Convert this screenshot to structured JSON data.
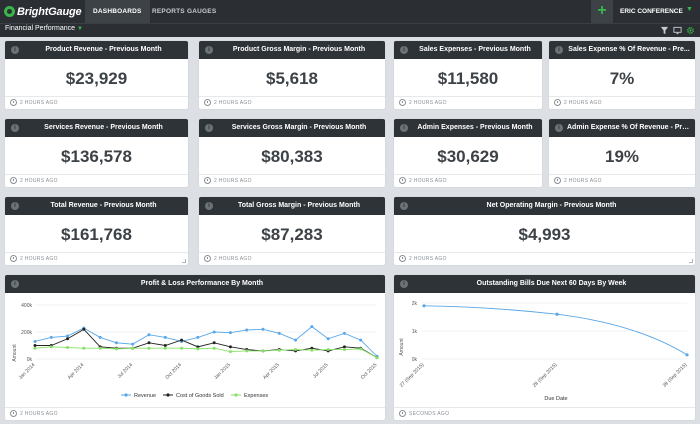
{
  "app": {
    "logo": "BrightGauge"
  },
  "nav": {
    "dashboards": "DASHBOARDS",
    "reports": "REPORTS",
    "gauges": "GAUGES"
  },
  "header": {
    "user": "ERIC CONFERENCE",
    "add": "+"
  },
  "dashboard": {
    "name": "Financial Performance"
  },
  "colors": {
    "topbar": "#2b2f33",
    "accent": "#39b54a",
    "widget_header": "#2e3338",
    "value_text": "#3d4247"
  },
  "widgets": [
    {
      "title": "Product Revenue - Previous Month",
      "value": "$23,929",
      "updated": "2 HOURS AGO"
    },
    {
      "title": "Product Gross Margin - Previous Month",
      "value": "$5,618",
      "updated": "2 HOURS AGO"
    },
    {
      "title": "Sales Expenses - Previous Month",
      "value": "$11,580",
      "updated": "2 HOURS AGO"
    },
    {
      "title": "Sales Expense % Of Revenue - Pre...",
      "value": "7%",
      "updated": "2 HOURS AGO"
    },
    {
      "title": "Services Revenue - Previous Month",
      "value": "$136,578",
      "updated": "2 HOURS AGO"
    },
    {
      "title": "Services Gross Margin - Previous Month",
      "value": "$80,383",
      "updated": "2 HOURS AGO"
    },
    {
      "title": "Admin Expenses - Previous Month",
      "value": "$30,629",
      "updated": "2 HOURS AGO"
    },
    {
      "title": "Admin Expense % Of Revenue - Pre...",
      "value": "19%",
      "updated": "2 HOURS AGO"
    },
    {
      "title": "Total Revenue - Previous Month",
      "value": "$161,768",
      "updated": "2 HOURS AGO"
    },
    {
      "title": "Total Gross Margin - Previous Month",
      "value": "$87,283",
      "updated": "2 HOURS AGO"
    },
    {
      "title": "Net Operating Margin - Previous Month",
      "value": "$4,993",
      "updated": "2 HOURS AGO"
    }
  ],
  "pl_chart": {
    "title": "Profit & Loss Performance By Month",
    "updated": "2 HOURS AGO",
    "ylabel": "Amount",
    "yticks": [
      "0k",
      "200k",
      "400k"
    ],
    "xticks": [
      "Jan 2014",
      "Apr 2014",
      "Jul 2014",
      "Oct 2014",
      "Jan 2015",
      "Apr 2015",
      "Jul 2015",
      "Oct 2015"
    ]
  },
  "bills_chart": {
    "title": "Outstanding Bills Due Next 60 Days By Week",
    "updated": "SECONDS AGO",
    "ylabel": "Amount",
    "xlabel": "Due Date",
    "yticks": [
      "0k",
      "1k",
      "2k"
    ],
    "xticks": [
      "27 (Sep 2015)",
      "28 (Sep 2015)",
      "39 (Sep 2015)"
    ]
  },
  "chart_data": [
    {
      "type": "line",
      "title": "Profit & Loss Performance By Month",
      "ylabel": "Amount",
      "ylim": [
        0,
        400000
      ],
      "legend": "bottom",
      "x": [
        "Jan 2014",
        "Feb 2014",
        "Mar 2014",
        "Apr 2014",
        "May 2014",
        "Jun 2014",
        "Jul 2014",
        "Aug 2014",
        "Sep 2014",
        "Oct 2014",
        "Nov 2014",
        "Dec 2014",
        "Jan 2015",
        "Feb 2015",
        "Mar 2015",
        "Apr 2015",
        "May 2015",
        "Jun 2015",
        "Jul 2015",
        "Aug 2015",
        "Sep 2015",
        "Oct 2015"
      ],
      "series": [
        {
          "name": "Revenue",
          "color": "#5aa7e8",
          "values": [
            130000,
            160000,
            170000,
            230000,
            160000,
            120000,
            110000,
            180000,
            160000,
            130000,
            160000,
            200000,
            195000,
            215000,
            220000,
            190000,
            140000,
            240000,
            150000,
            190000,
            140000,
            20000
          ]
        },
        {
          "name": "Cost of Goods Sold",
          "color": "#222222",
          "values": [
            100000,
            100000,
            150000,
            220000,
            90000,
            80000,
            80000,
            120000,
            100000,
            140000,
            90000,
            120000,
            90000,
            70000,
            60000,
            70000,
            60000,
            80000,
            60000,
            90000,
            80000,
            10000
          ]
        },
        {
          "name": "Expenses",
          "color": "#86e266",
          "values": [
            80000,
            90000,
            85000,
            80000,
            80000,
            75000,
            80000,
            80000,
            80000,
            80000,
            75000,
            80000,
            55000,
            60000,
            60000,
            65000,
            70000,
            65000,
            70000,
            70000,
            75000,
            10000
          ]
        }
      ]
    },
    {
      "type": "line",
      "title": "Outstanding Bills Due Next 60 Days By Week",
      "xlabel": "Due Date",
      "ylabel": "Amount",
      "ylim": [
        0,
        2000
      ],
      "x": [
        "27 (Sep 2015)",
        "28 (Sep 2015)",
        "39 (Sep 2015)"
      ],
      "series": [
        {
          "name": "Outstanding Bills",
          "color": "#5aa7e8",
          "values": [
            1900,
            1600,
            150
          ]
        }
      ]
    }
  ],
  "legend": {
    "revenue": "Revenue",
    "cogs": "Cost of Goods Sold",
    "expenses": "Expenses"
  }
}
